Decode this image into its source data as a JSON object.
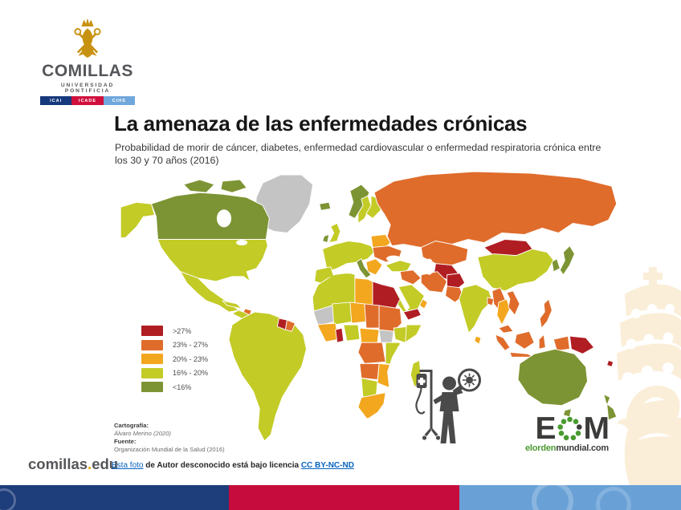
{
  "slide": {
    "background": "#ffffff"
  },
  "university_logo": {
    "wordmark": "COMILLAS",
    "subtitle": "UNIVERSIDAD PONTIFICIA",
    "crest_color": "#c89211",
    "schools": [
      {
        "label": "ICAI",
        "color": "#16387c"
      },
      {
        "label": "ICADE",
        "color": "#d00f3c"
      },
      {
        "label": "CIHS",
        "color": "#71a8dc"
      }
    ]
  },
  "infographic": {
    "title": "La amenaza de las enfermedades crónicas",
    "subtitle": "Probabilidad de morir de cáncer, diabetes, enfermedad cardiovascular o enfermedad respiratoria crónica entre los 30 y 70 años (2016)",
    "pictogram_color": "#4a4a4a",
    "credits": {
      "cartography_label": "Cartografía:",
      "cartography_value": "Álvaro Merino (2020)",
      "source_label": "Fuente:",
      "source_value": "Organización Mundial de la Salud (2016)"
    },
    "brand": {
      "letter_e": "E",
      "letter_m": "M",
      "url_green": "elorden",
      "url_dark": "mundial.com",
      "dot_color": "#4a9b2f",
      "text_color": "#3b3b3a"
    }
  },
  "chart_data": {
    "type": "choropleth",
    "title": "La amenaza de las enfermedades crónicas",
    "metric": "Probabilidad de morir de cáncer, diabetes, enfermedad cardiovascular o enfermedad respiratoria crónica entre los 30 y 70 años (2016)",
    "legend_position": "bottom-left",
    "legend": [
      {
        "key": "gt27",
        "label": ">27%",
        "color": "#b01e23"
      },
      {
        "key": "r23_27",
        "label": "23% - 27%",
        "color": "#df6c2b"
      },
      {
        "key": "r20_23",
        "label": "20% - 23%",
        "color": "#f3a71f"
      },
      {
        "key": "r16_20",
        "label": "16% - 20%",
        "color": "#c3cb26"
      },
      {
        "key": "lt16",
        "label": "<16%",
        "color": "#7d9434"
      }
    ],
    "no_data_color": "#c4c4c4",
    "regions": {
      "greenland": "nodata",
      "alaska": "r16_20",
      "canada": "lt16",
      "canada_arctic": "lt16",
      "usa": "r16_20",
      "mexico": "r16_20",
      "central_america": "r16_20",
      "cuba": "r16_20",
      "hispaniola": "r23_27",
      "south_america": "r16_20",
      "guyana": "gt27",
      "suriname": "r23_27",
      "iceland": "lt16",
      "uk": "r16_20",
      "ireland": "lt16",
      "norway": "lt16",
      "sweden": "r16_20",
      "finland": "r16_20",
      "western_europe": "r16_20",
      "iberia": "r16_20",
      "italy": "lt16",
      "poland_baltics": "r20_23",
      "ukraine_belarus": "r23_27",
      "balkans": "r20_23",
      "russia": "r23_27",
      "kazakhstan": "r23_27",
      "uzbekistan_turkmenistan": "gt27",
      "turkey": "r16_20",
      "syria_iraq": "r23_27",
      "iran": "r23_27",
      "afghanistan": "gt27",
      "pakistan": "r23_27",
      "saudi_arabia": "r16_20",
      "yemen": "gt27",
      "oman": "r20_23",
      "india": "r16_20",
      "bangladesh": "r23_27",
      "sri_lanka": "r20_23",
      "mongolia": "gt27",
      "china": "r16_20",
      "korea": "lt16",
      "japan": "lt16",
      "myanmar": "r23_27",
      "thailand": "r20_23",
      "vietnam_laos": "r23_27",
      "malaysia": "r23_27",
      "indonesia": "r23_27",
      "philippines": "r23_27",
      "papua_new_guinea": "gt27",
      "fiji": "gt27",
      "australia": "lt16",
      "new_zealand": "lt16",
      "morocco_algeria": "r16_20",
      "libya": "r20_23",
      "egypt": "gt27",
      "mauritania": "nodata",
      "mali": "r16_20",
      "niger": "r20_23",
      "chad": "r23_27",
      "sudan": "r23_27",
      "west_africa": "r20_23",
      "ghana": "gt27",
      "nigeria": "r16_20",
      "cameroon_car": "r20_23",
      "south_sudan": "nodata",
      "ethiopia": "r16_20",
      "somalia": "r16_20",
      "drc": "r23_27",
      "kenya_tanzania": "r16_20",
      "angola": "r23_27",
      "zambia_mozambique": "r20_23",
      "namibia_botswana": "r16_20",
      "south_africa": "r20_23",
      "madagascar": "r16_20"
    }
  },
  "footer": {
    "site": {
      "prefix": "comillas",
      "dot": ".",
      "suffix": "edu",
      "dot_color": "#eca400",
      "text_color": "#54565a"
    },
    "attribution": {
      "link_photo": "Esta foto",
      "middle": " de Autor desconocido está bajo licencia ",
      "link_license": "CC BY-NC-ND",
      "link_color": "#0563c1"
    },
    "bars": [
      {
        "color": "#1d3d7b"
      },
      {
        "color": "#c60c3d"
      },
      {
        "color": "#69a1d7"
      }
    ]
  },
  "watermark_color": "#fbeed8"
}
